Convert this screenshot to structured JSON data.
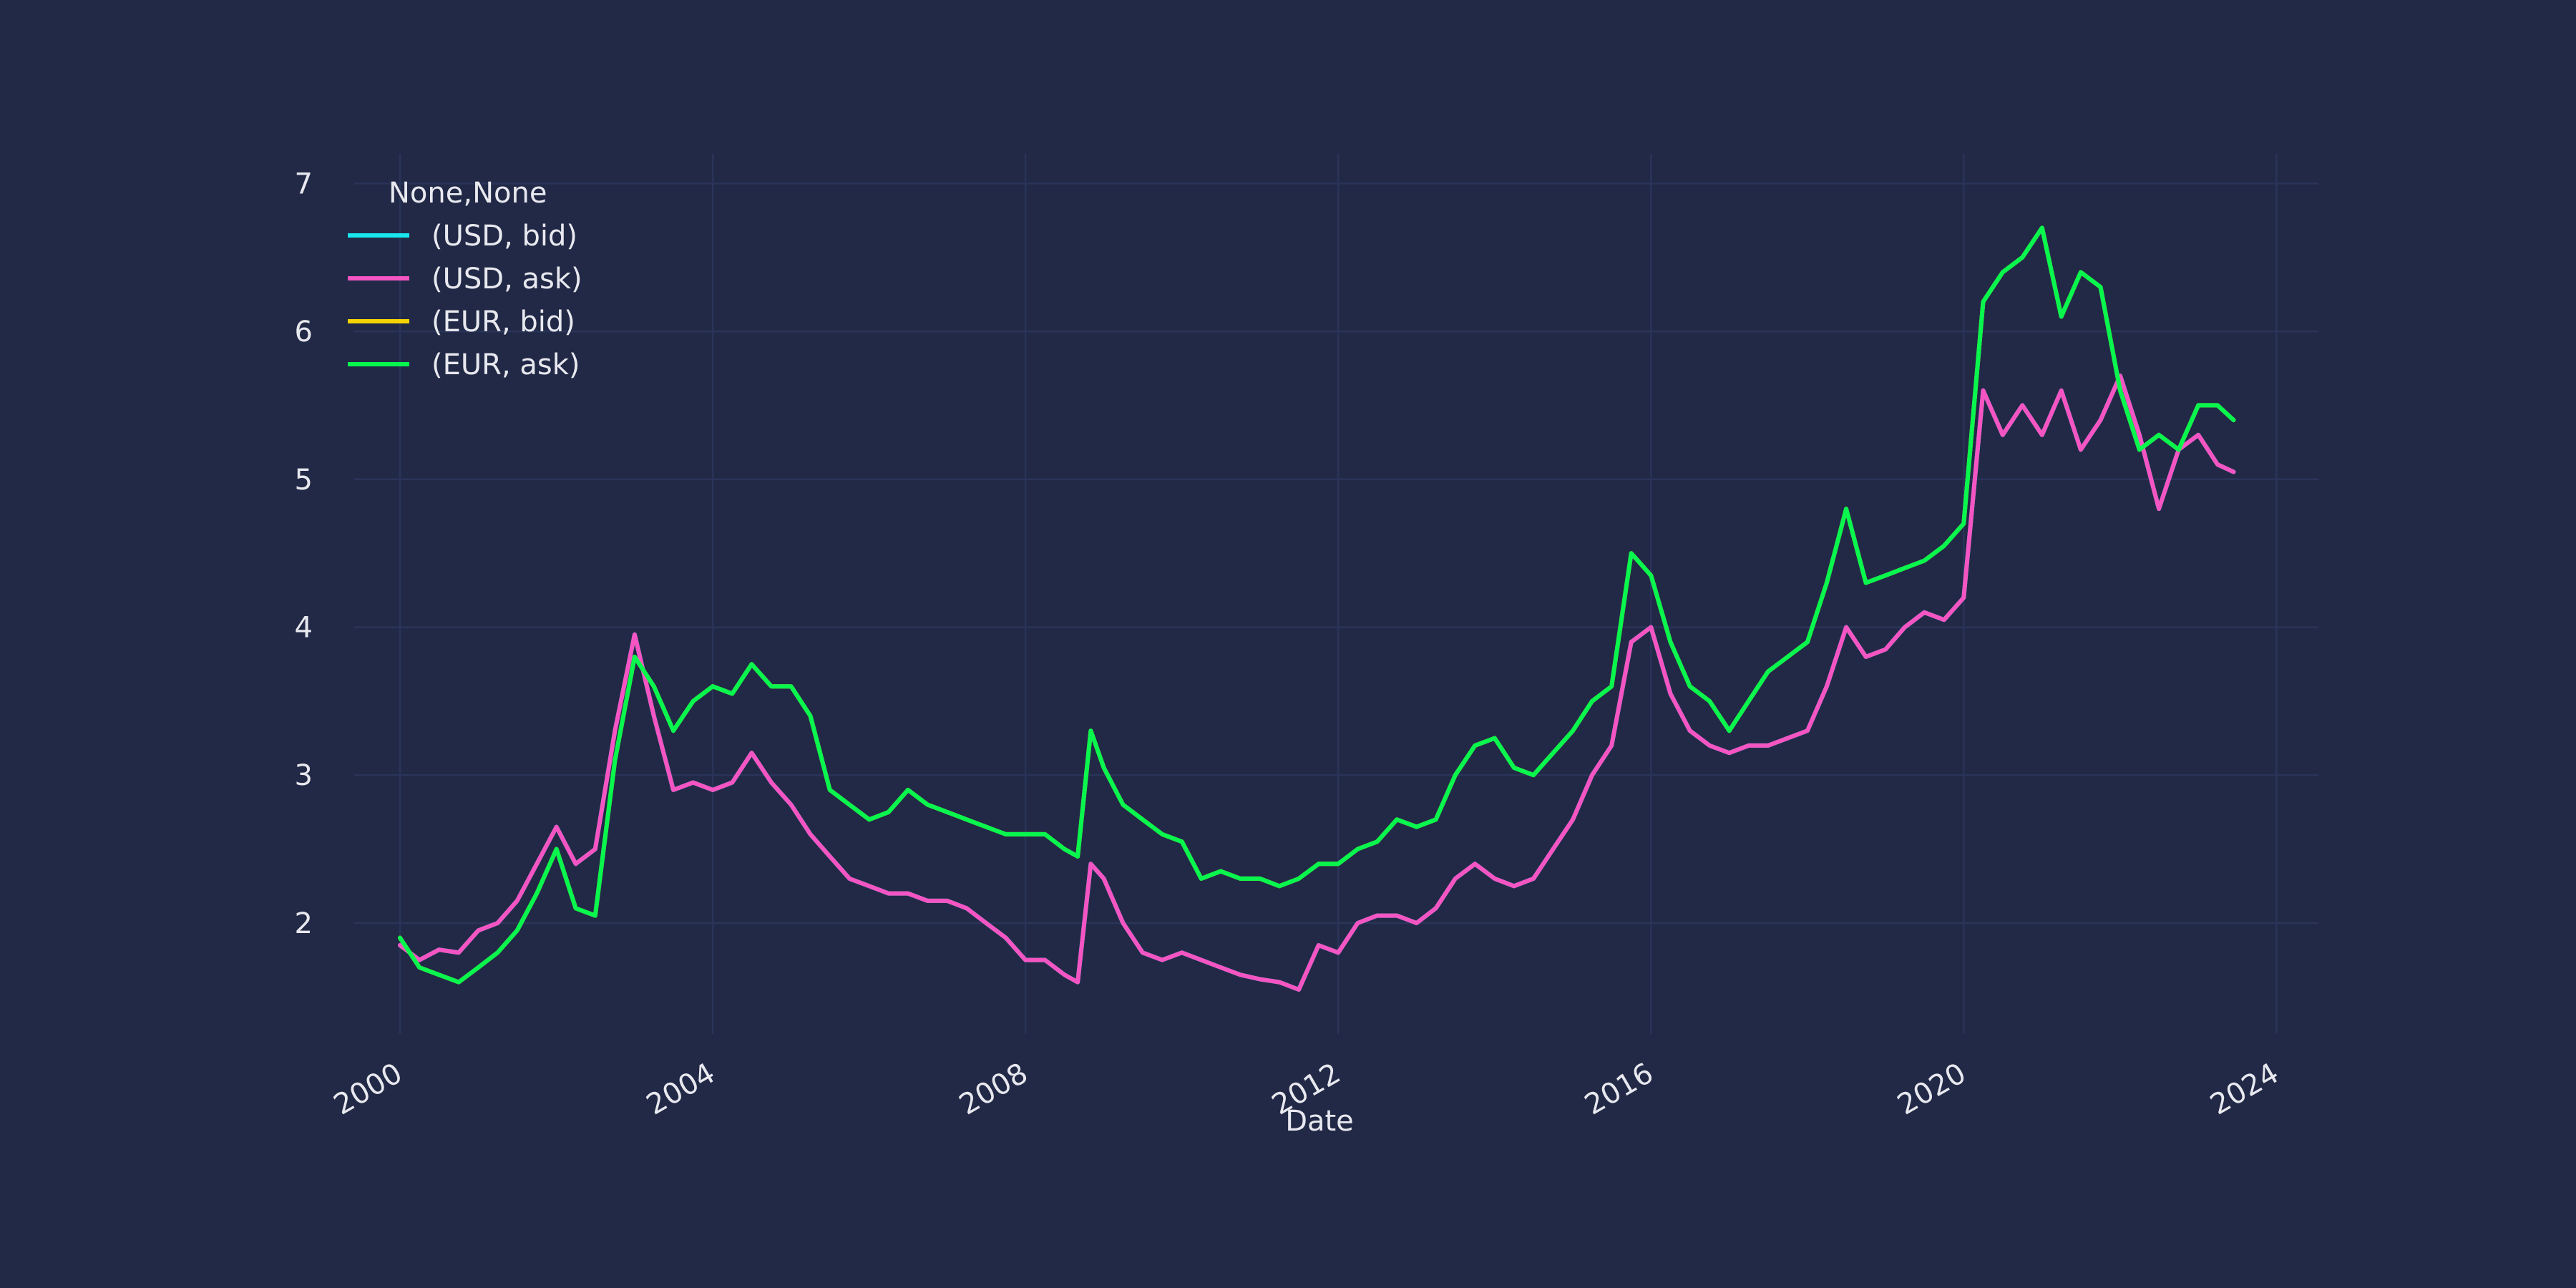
{
  "chart_data": {
    "type": "line",
    "xlabel": "Date",
    "ylabel": "",
    "x_ticks": [
      "2000",
      "2004",
      "2008",
      "2012",
      "2016",
      "2020",
      "2024"
    ],
    "y_ticks": [
      "2",
      "3",
      "4",
      "5",
      "6",
      "7"
    ],
    "xlim": [
      "1999-06-01",
      "2024-07-15"
    ],
    "ylim": [
      1.25,
      7.2
    ],
    "grid": true,
    "legend": {
      "title": "None,None",
      "placement": "top-left"
    },
    "colors": {
      "background": "#212946",
      "grid": "#2a3459",
      "text": "#e8e8ef",
      "usd_bid": "#18e7ee",
      "usd_ask": "#f554c3",
      "eur_bid": "#f5d300",
      "eur_ask": "#08f74e"
    },
    "series": [
      {
        "name": "(USD, bid)",
        "color": "#18e7ee",
        "x": [
          "2000-01-01",
          "2000-04-01",
          "2000-07-01",
          "2000-10-01",
          "2001-01-01",
          "2001-04-01",
          "2001-07-01",
          "2001-10-01",
          "2002-01-01",
          "2002-04-01",
          "2002-07-01",
          "2002-10-01",
          "2003-01-01",
          "2003-04-01",
          "2003-07-01",
          "2003-10-01",
          "2004-01-01",
          "2004-04-01",
          "2004-07-01",
          "2004-10-01",
          "2005-01-01",
          "2005-04-01",
          "2005-07-01",
          "2005-10-01",
          "2006-01-01",
          "2006-04-01",
          "2006-07-01",
          "2006-10-01",
          "2007-01-01",
          "2007-04-01",
          "2007-07-01",
          "2007-10-01",
          "2008-01-01",
          "2008-04-01",
          "2008-07-01",
          "2008-09-01",
          "2008-11-01",
          "2009-01-01",
          "2009-04-01",
          "2009-07-01",
          "2009-10-01",
          "2010-01-01",
          "2010-04-01",
          "2010-07-01",
          "2010-10-01",
          "2011-01-01",
          "2011-04-01",
          "2011-07-01",
          "2011-10-01",
          "2012-01-01",
          "2012-04-01",
          "2012-07-01",
          "2012-10-01",
          "2013-01-01",
          "2013-04-01",
          "2013-07-01",
          "2013-10-01",
          "2014-01-01",
          "2014-04-01",
          "2014-07-01",
          "2014-10-01",
          "2015-01-01",
          "2015-04-01",
          "2015-07-01",
          "2015-10-01",
          "2016-01-01",
          "2016-04-01",
          "2016-07-01",
          "2016-10-01",
          "2017-01-01",
          "2017-04-01",
          "2017-07-01",
          "2017-10-01",
          "2018-01-01",
          "2018-04-01",
          "2018-07-01",
          "2018-10-01",
          "2019-01-01",
          "2019-04-01",
          "2019-07-01",
          "2019-10-01",
          "2020-01-01",
          "2020-04-01",
          "2020-07-01",
          "2020-10-01",
          "2021-01-01",
          "2021-04-01",
          "2021-07-01",
          "2021-10-01",
          "2022-01-01",
          "2022-04-01",
          "2022-07-01",
          "2022-10-01",
          "2023-01-01",
          "2023-04-01",
          "2023-06-15"
        ],
        "y": [
          1.85,
          1.75,
          1.82,
          1.8,
          1.95,
          2.0,
          2.15,
          2.4,
          2.65,
          2.4,
          2.5,
          3.3,
          3.95,
          3.4,
          2.9,
          2.95,
          2.9,
          2.95,
          3.15,
          2.95,
          2.8,
          2.6,
          2.45,
          2.3,
          2.25,
          2.2,
          2.2,
          2.15,
          2.15,
          2.1,
          2.0,
          1.9,
          1.75,
          1.75,
          1.65,
          1.6,
          2.4,
          2.3,
          2.0,
          1.8,
          1.75,
          1.8,
          1.75,
          1.7,
          1.65,
          1.62,
          1.6,
          1.55,
          1.85,
          1.8,
          2.0,
          2.05,
          2.05,
          2.0,
          2.1,
          2.3,
          2.4,
          2.3,
          2.25,
          2.3,
          2.5,
          2.7,
          3.0,
          3.2,
          3.9,
          4.0,
          3.55,
          3.3,
          3.2,
          3.15,
          3.2,
          3.2,
          3.25,
          3.3,
          3.6,
          4.0,
          3.8,
          3.85,
          4.0,
          4.1,
          4.05,
          4.2,
          5.6,
          5.3,
          5.5,
          5.3,
          5.6,
          5.2,
          5.4,
          5.7,
          5.3,
          4.8,
          5.2,
          5.3,
          5.1,
          5.05
        ]
      },
      {
        "name": "(USD, ask)",
        "color": "#f554c3",
        "x": [
          "2000-01-01",
          "2000-04-01",
          "2000-07-01",
          "2000-10-01",
          "2001-01-01",
          "2001-04-01",
          "2001-07-01",
          "2001-10-01",
          "2002-01-01",
          "2002-04-01",
          "2002-07-01",
          "2002-10-01",
          "2003-01-01",
          "2003-04-01",
          "2003-07-01",
          "2003-10-01",
          "2004-01-01",
          "2004-04-01",
          "2004-07-01",
          "2004-10-01",
          "2005-01-01",
          "2005-04-01",
          "2005-07-01",
          "2005-10-01",
          "2006-01-01",
          "2006-04-01",
          "2006-07-01",
          "2006-10-01",
          "2007-01-01",
          "2007-04-01",
          "2007-07-01",
          "2007-10-01",
          "2008-01-01",
          "2008-04-01",
          "2008-07-01",
          "2008-09-01",
          "2008-11-01",
          "2009-01-01",
          "2009-04-01",
          "2009-07-01",
          "2009-10-01",
          "2010-01-01",
          "2010-04-01",
          "2010-07-01",
          "2010-10-01",
          "2011-01-01",
          "2011-04-01",
          "2011-07-01",
          "2011-10-01",
          "2012-01-01",
          "2012-04-01",
          "2012-07-01",
          "2012-10-01",
          "2013-01-01",
          "2013-04-01",
          "2013-07-01",
          "2013-10-01",
          "2014-01-01",
          "2014-04-01",
          "2014-07-01",
          "2014-10-01",
          "2015-01-01",
          "2015-04-01",
          "2015-07-01",
          "2015-10-01",
          "2016-01-01",
          "2016-04-01",
          "2016-07-01",
          "2016-10-01",
          "2017-01-01",
          "2017-04-01",
          "2017-07-01",
          "2017-10-01",
          "2018-01-01",
          "2018-04-01",
          "2018-07-01",
          "2018-10-01",
          "2019-01-01",
          "2019-04-01",
          "2019-07-01",
          "2019-10-01",
          "2020-01-01",
          "2020-04-01",
          "2020-07-01",
          "2020-10-01",
          "2021-01-01",
          "2021-04-01",
          "2021-07-01",
          "2021-10-01",
          "2022-01-01",
          "2022-04-01",
          "2022-07-01",
          "2022-10-01",
          "2023-01-01",
          "2023-04-01",
          "2023-06-15"
        ],
        "y": [
          1.85,
          1.75,
          1.82,
          1.8,
          1.95,
          2.0,
          2.15,
          2.4,
          2.65,
          2.4,
          2.5,
          3.3,
          3.95,
          3.4,
          2.9,
          2.95,
          2.9,
          2.95,
          3.15,
          2.95,
          2.8,
          2.6,
          2.45,
          2.3,
          2.25,
          2.2,
          2.2,
          2.15,
          2.15,
          2.1,
          2.0,
          1.9,
          1.75,
          1.75,
          1.65,
          1.6,
          2.4,
          2.3,
          2.0,
          1.8,
          1.75,
          1.8,
          1.75,
          1.7,
          1.65,
          1.62,
          1.6,
          1.55,
          1.85,
          1.8,
          2.0,
          2.05,
          2.05,
          2.0,
          2.1,
          2.3,
          2.4,
          2.3,
          2.25,
          2.3,
          2.5,
          2.7,
          3.0,
          3.2,
          3.9,
          4.0,
          3.55,
          3.3,
          3.2,
          3.15,
          3.2,
          3.2,
          3.25,
          3.3,
          3.6,
          4.0,
          3.8,
          3.85,
          4.0,
          4.1,
          4.05,
          4.2,
          5.6,
          5.3,
          5.5,
          5.3,
          5.6,
          5.2,
          5.4,
          5.7,
          5.3,
          4.8,
          5.2,
          5.3,
          5.1,
          5.05
        ]
      },
      {
        "name": "(EUR, bid)",
        "color": "#f5d300",
        "x": [
          "2000-01-01",
          "2000-04-01",
          "2000-07-01",
          "2000-10-01",
          "2001-01-01",
          "2001-04-01",
          "2001-07-01",
          "2001-10-01",
          "2002-01-01",
          "2002-04-01",
          "2002-07-01",
          "2002-10-01",
          "2003-01-01",
          "2003-04-01",
          "2003-07-01",
          "2003-10-01",
          "2004-01-01",
          "2004-04-01",
          "2004-07-01",
          "2004-10-01",
          "2005-01-01",
          "2005-04-01",
          "2005-07-01",
          "2005-10-01",
          "2006-01-01",
          "2006-04-01",
          "2006-07-01",
          "2006-10-01",
          "2007-01-01",
          "2007-04-01",
          "2007-07-01",
          "2007-10-01",
          "2008-01-01",
          "2008-04-01",
          "2008-07-01",
          "2008-09-01",
          "2008-11-01",
          "2009-01-01",
          "2009-04-01",
          "2009-07-01",
          "2009-10-01",
          "2010-01-01",
          "2010-04-01",
          "2010-07-01",
          "2010-10-01",
          "2011-01-01",
          "2011-04-01",
          "2011-07-01",
          "2011-10-01",
          "2012-01-01",
          "2012-04-01",
          "2012-07-01",
          "2012-10-01",
          "2013-01-01",
          "2013-04-01",
          "2013-07-01",
          "2013-10-01",
          "2014-01-01",
          "2014-04-01",
          "2014-07-01",
          "2014-10-01",
          "2015-01-01",
          "2015-04-01",
          "2015-07-01",
          "2015-10-01",
          "2016-01-01",
          "2016-04-01",
          "2016-07-01",
          "2016-10-01",
          "2017-01-01",
          "2017-04-01",
          "2017-07-01",
          "2017-10-01",
          "2018-01-01",
          "2018-04-01",
          "2018-07-01",
          "2018-10-01",
          "2019-01-01",
          "2019-04-01",
          "2019-07-01",
          "2019-10-01",
          "2020-01-01",
          "2020-04-01",
          "2020-07-01",
          "2020-10-01",
          "2021-01-01",
          "2021-04-01",
          "2021-07-01",
          "2021-10-01",
          "2022-01-01",
          "2022-04-01",
          "2022-07-01",
          "2022-10-01",
          "2023-01-01",
          "2023-04-01",
          "2023-06-15"
        ],
        "y": [
          1.9,
          1.7,
          1.65,
          1.6,
          1.7,
          1.8,
          1.95,
          2.2,
          2.5,
          2.1,
          2.05,
          3.1,
          3.8,
          3.6,
          3.3,
          3.5,
          3.6,
          3.55,
          3.75,
          3.6,
          3.6,
          3.4,
          2.9,
          2.8,
          2.7,
          2.75,
          2.9,
          2.8,
          2.75,
          2.7,
          2.65,
          2.6,
          2.6,
          2.6,
          2.5,
          2.45,
          3.3,
          3.05,
          2.8,
          2.7,
          2.6,
          2.55,
          2.3,
          2.35,
          2.3,
          2.3,
          2.25,
          2.3,
          2.4,
          2.4,
          2.5,
          2.55,
          2.7,
          2.65,
          2.7,
          3.0,
          3.2,
          3.25,
          3.05,
          3.0,
          3.15,
          3.3,
          3.5,
          3.6,
          4.5,
          4.35,
          3.9,
          3.6,
          3.5,
          3.3,
          3.5,
          3.7,
          3.8,
          3.9,
          4.3,
          4.8,
          4.3,
          4.35,
          4.4,
          4.45,
          4.55,
          4.7,
          6.2,
          6.4,
          6.5,
          6.7,
          6.1,
          6.4,
          6.3,
          5.6,
          5.2,
          5.3,
          5.2,
          5.5,
          5.5,
          5.4
        ]
      },
      {
        "name": "(EUR, ask)",
        "color": "#08f74e",
        "x": [
          "2000-01-01",
          "2000-04-01",
          "2000-07-01",
          "2000-10-01",
          "2001-01-01",
          "2001-04-01",
          "2001-07-01",
          "2001-10-01",
          "2002-01-01",
          "2002-04-01",
          "2002-07-01",
          "2002-10-01",
          "2003-01-01",
          "2003-04-01",
          "2003-07-01",
          "2003-10-01",
          "2004-01-01",
          "2004-04-01",
          "2004-07-01",
          "2004-10-01",
          "2005-01-01",
          "2005-04-01",
          "2005-07-01",
          "2005-10-01",
          "2006-01-01",
          "2006-04-01",
          "2006-07-01",
          "2006-10-01",
          "2007-01-01",
          "2007-04-01",
          "2007-07-01",
          "2007-10-01",
          "2008-01-01",
          "2008-04-01",
          "2008-07-01",
          "2008-09-01",
          "2008-11-01",
          "2009-01-01",
          "2009-04-01",
          "2009-07-01",
          "2009-10-01",
          "2010-01-01",
          "2010-04-01",
          "2010-07-01",
          "2010-10-01",
          "2011-01-01",
          "2011-04-01",
          "2011-07-01",
          "2011-10-01",
          "2012-01-01",
          "2012-04-01",
          "2012-07-01",
          "2012-10-01",
          "2013-01-01",
          "2013-04-01",
          "2013-07-01",
          "2013-10-01",
          "2014-01-01",
          "2014-04-01",
          "2014-07-01",
          "2014-10-01",
          "2015-01-01",
          "2015-04-01",
          "2015-07-01",
          "2015-10-01",
          "2016-01-01",
          "2016-04-01",
          "2016-07-01",
          "2016-10-01",
          "2017-01-01",
          "2017-04-01",
          "2017-07-01",
          "2017-10-01",
          "2018-01-01",
          "2018-04-01",
          "2018-07-01",
          "2018-10-01",
          "2019-01-01",
          "2019-04-01",
          "2019-07-01",
          "2019-10-01",
          "2020-01-01",
          "2020-04-01",
          "2020-07-01",
          "2020-10-01",
          "2021-01-01",
          "2021-04-01",
          "2021-07-01",
          "2021-10-01",
          "2022-01-01",
          "2022-04-01",
          "2022-07-01",
          "2022-10-01",
          "2023-01-01",
          "2023-04-01",
          "2023-06-15"
        ],
        "y": [
          1.9,
          1.7,
          1.65,
          1.6,
          1.7,
          1.8,
          1.95,
          2.2,
          2.5,
          2.1,
          2.05,
          3.1,
          3.8,
          3.6,
          3.3,
          3.5,
          3.6,
          3.55,
          3.75,
          3.6,
          3.6,
          3.4,
          2.9,
          2.8,
          2.7,
          2.75,
          2.9,
          2.8,
          2.75,
          2.7,
          2.65,
          2.6,
          2.6,
          2.6,
          2.5,
          2.45,
          3.3,
          3.05,
          2.8,
          2.7,
          2.6,
          2.55,
          2.3,
          2.35,
          2.3,
          2.3,
          2.25,
          2.3,
          2.4,
          2.4,
          2.5,
          2.55,
          2.7,
          2.65,
          2.7,
          3.0,
          3.2,
          3.25,
          3.05,
          3.0,
          3.15,
          3.3,
          3.5,
          3.6,
          4.5,
          4.35,
          3.9,
          3.6,
          3.5,
          3.3,
          3.5,
          3.7,
          3.8,
          3.9,
          4.3,
          4.8,
          4.3,
          4.35,
          4.4,
          4.45,
          4.55,
          4.7,
          6.2,
          6.4,
          6.5,
          6.7,
          6.1,
          6.4,
          6.3,
          5.6,
          5.2,
          5.3,
          5.2,
          5.5,
          5.5,
          5.4
        ]
      }
    ]
  }
}
